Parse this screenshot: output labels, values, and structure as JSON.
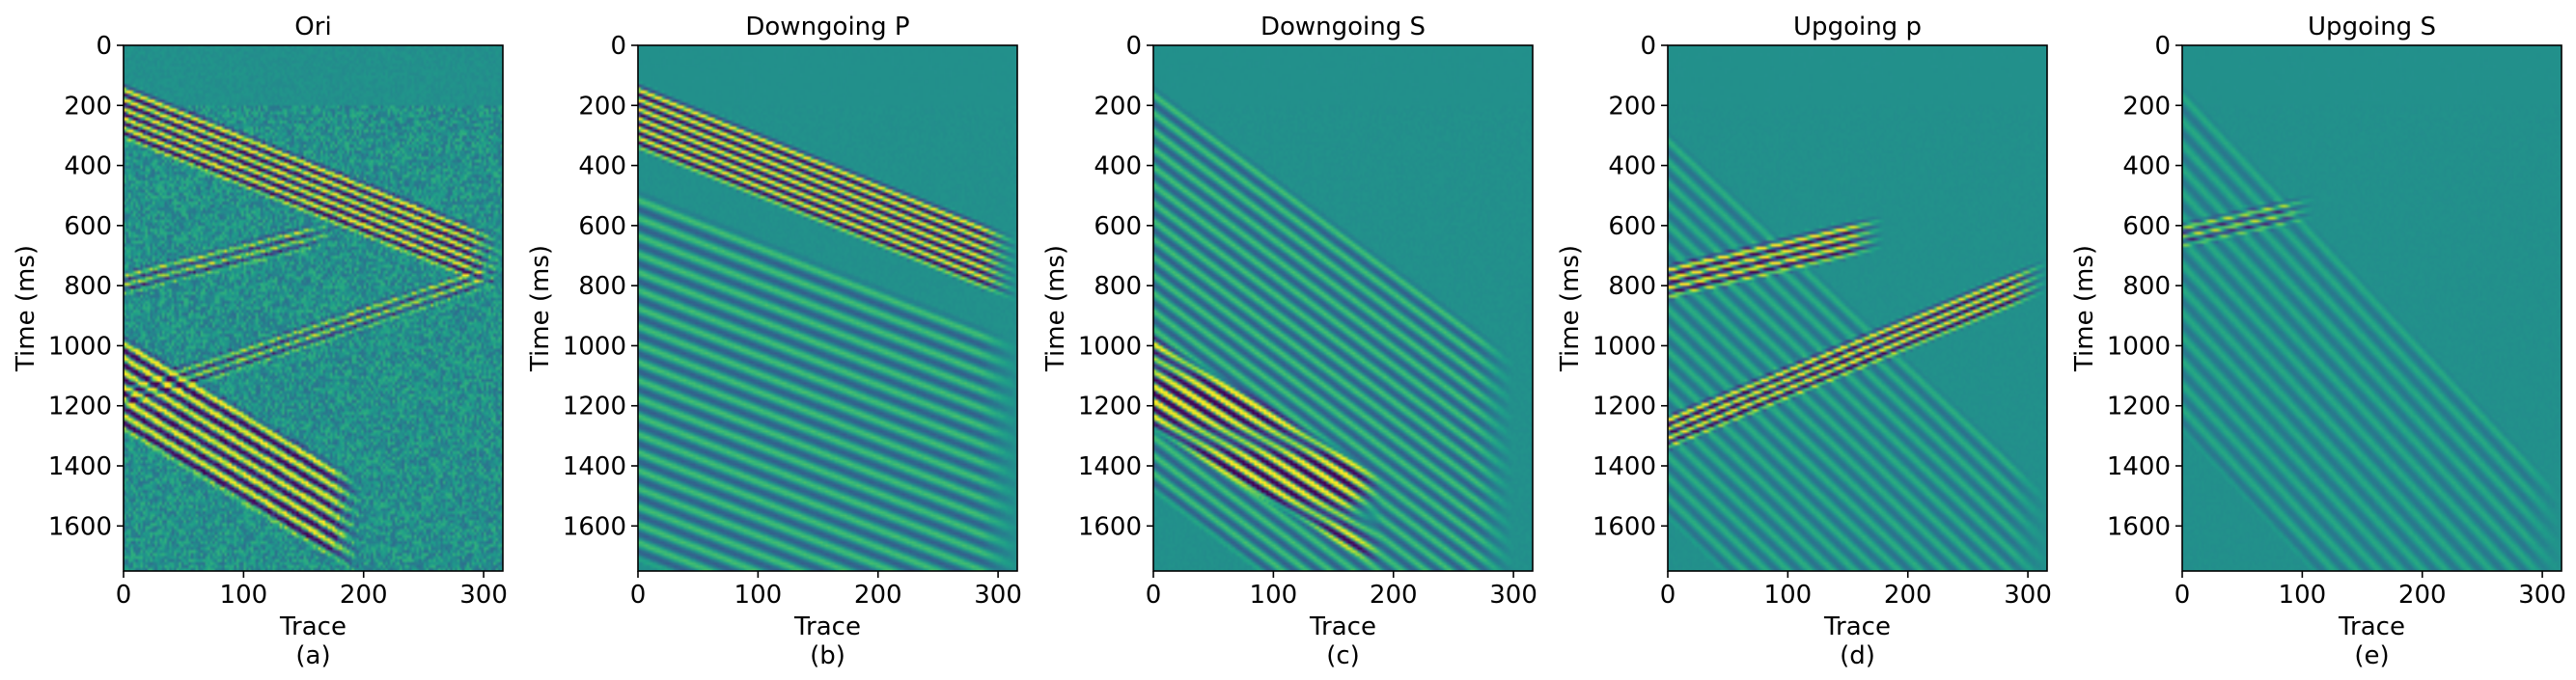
{
  "figure": {
    "background": "#ffffff"
  },
  "colormap": {
    "name": "viridis",
    "low": "#440154",
    "mid": "#21918c",
    "high": "#fde725"
  },
  "chart_data": [
    {
      "type": "heatmap",
      "title": "Ori",
      "caption": "(a)",
      "xlabel": "Trace",
      "ylabel": "Time (ms)",
      "xlim": [
        0,
        316
      ],
      "ylim": [
        1750,
        0
      ],
      "xticks": [
        0,
        100,
        200,
        300
      ],
      "yticks": [
        0,
        200,
        400,
        600,
        800,
        1000,
        1200,
        1400,
        1600
      ],
      "grid": false,
      "events": [
        {
          "kind": "downgoing P",
          "t0": 140,
          "t1": 650,
          "cycles": 5,
          "strength": 1.0,
          "spacing": 32
        },
        {
          "kind": "downgoing S",
          "t0": 980,
          "t1": 1750,
          "x_end": 200,
          "cycles": 6,
          "strength": 1.0,
          "spacing": 48
        },
        {
          "kind": "upgoing P",
          "t0": 1140,
          "t1": 720,
          "cycles": 2,
          "strength": 0.6,
          "spacing": 30
        },
        {
          "kind": "upgoing P",
          "t0": 760,
          "t1": 450,
          "x_end": 180,
          "cycles": 2,
          "strength": 0.6,
          "spacing": 30
        }
      ],
      "noise": 0.55
    },
    {
      "type": "heatmap",
      "title": "Downgoing P",
      "caption": "(b)",
      "xlabel": "Trace",
      "ylabel": "Time (ms)",
      "xlim": [
        0,
        316
      ],
      "ylim": [
        1750,
        0
      ],
      "xticks": [
        0,
        100,
        200,
        300
      ],
      "yticks": [
        0,
        200,
        400,
        600,
        800,
        1000,
        1200,
        1400,
        1600
      ],
      "grid": false,
      "events": [
        {
          "kind": "downgoing P",
          "t0": 140,
          "t1": 650,
          "cycles": 6,
          "strength": 1.0,
          "spacing": 32
        },
        {
          "kind": "multiples",
          "t0": 500,
          "t1": 1000,
          "cycles": 20,
          "strength": 0.35,
          "spacing": 60
        }
      ],
      "noise": 0.05
    },
    {
      "type": "heatmap",
      "title": "Downgoing S",
      "caption": "(c)",
      "xlabel": "Trace",
      "ylabel": "Time (ms)",
      "xlim": [
        0,
        316
      ],
      "ylim": [
        1750,
        0
      ],
      "xticks": [
        0,
        100,
        200,
        300
      ],
      "yticks": [
        0,
        200,
        400,
        600,
        800,
        1000,
        1200,
        1400,
        1600
      ],
      "grid": false,
      "events": [
        {
          "kind": "downgoing S",
          "t0": 980,
          "t1": 1750,
          "x_end": 190,
          "cycles": 6,
          "strength": 1.0,
          "spacing": 48
        },
        {
          "kind": "converted S",
          "t0": 150,
          "t1": 1100,
          "x_end": 300,
          "cycles": 22,
          "strength": 0.35,
          "spacing": 60
        }
      ],
      "noise": 0.05
    },
    {
      "type": "heatmap",
      "title": "Upgoing p",
      "caption": "(d)",
      "xlabel": "Trace",
      "ylabel": "Time (ms)",
      "xlim": [
        0,
        316
      ],
      "ylim": [
        1750,
        0
      ],
      "xticks": [
        0,
        100,
        200,
        300
      ],
      "yticks": [
        0,
        200,
        400,
        600,
        800,
        1000,
        1200,
        1400,
        1600
      ],
      "grid": false,
      "events": [
        {
          "kind": "upgoing P",
          "t0": 1240,
          "t1": 720,
          "cycles": 3,
          "strength": 0.95,
          "spacing": 30
        },
        {
          "kind": "upgoing P",
          "t0": 740,
          "t1": 450,
          "x_end": 180,
          "cycles": 3,
          "strength": 0.95,
          "spacing": 30
        },
        {
          "kind": "weak upgoing",
          "t0": 300,
          "t1": 1500,
          "cycles": 18,
          "strength": 0.22,
          "spacing": 70
        }
      ],
      "noise": 0.04
    },
    {
      "type": "heatmap",
      "title": "Upgoing S",
      "caption": "(e)",
      "xlabel": "Trace",
      "ylabel": "Time (ms)",
      "xlim": [
        0,
        316
      ],
      "ylim": [
        1750,
        0
      ],
      "xticks": [
        0,
        100,
        200,
        300
      ],
      "yticks": [
        0,
        200,
        400,
        600,
        800,
        1000,
        1200,
        1400,
        1600
      ],
      "grid": false,
      "events": [
        {
          "kind": "upgoing S",
          "t0": 600,
          "t1": 330,
          "x_end": 110,
          "cycles": 2,
          "strength": 0.6,
          "spacing": 30
        },
        {
          "kind": "weak upgoing S",
          "t0": 150,
          "t1": 1500,
          "cycles": 14,
          "strength": 0.18,
          "spacing": 80
        }
      ],
      "noise": 0.04
    }
  ]
}
